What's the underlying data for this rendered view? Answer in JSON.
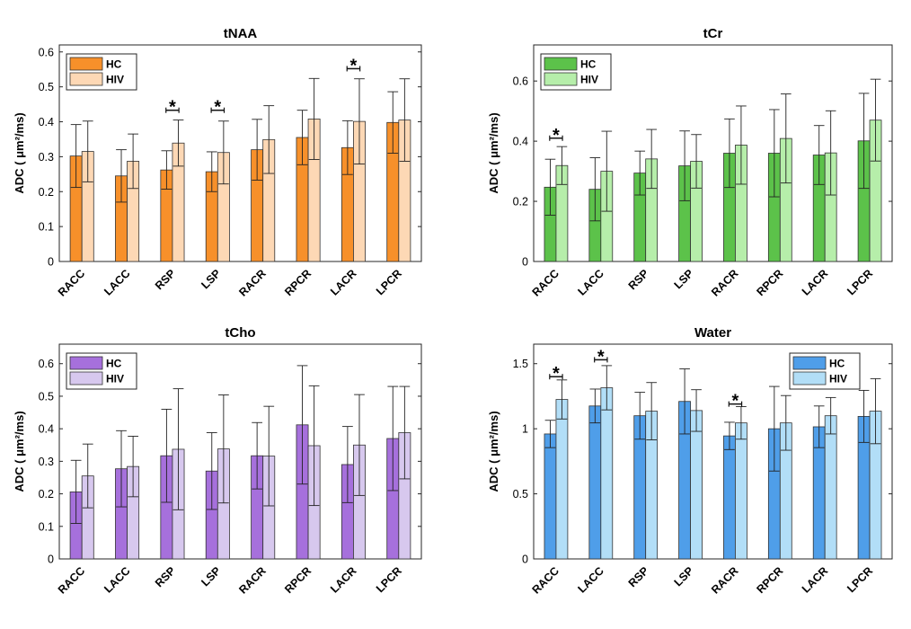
{
  "chart_data": [
    {
      "type": "bar",
      "title": "tNAA",
      "ylabel": "ADC ( μm²/ms)",
      "ylim": [
        0,
        0.62
      ],
      "yticks": [
        "0",
        "0.1",
        "0.2",
        "0.3",
        "0.4",
        "0.5",
        "0.6"
      ],
      "ytick_values": [
        0,
        0.1,
        0.2,
        0.3,
        0.4,
        0.5,
        0.6
      ],
      "categories": [
        "RACC",
        "LACC",
        "RSP",
        "LSP",
        "RACR",
        "RPCR",
        "LACR",
        "LPCR"
      ],
      "series": [
        {
          "name": "HC",
          "color": "#f7902a",
          "values": [
            0.302,
            0.245,
            0.262,
            0.257,
            0.32,
            0.355,
            0.326,
            0.398
          ],
          "err": [
            0.09,
            0.075,
            0.055,
            0.057,
            0.087,
            0.078,
            0.077,
            0.088
          ]
        },
        {
          "name": "HIV",
          "color": "#fdd8b5",
          "values": [
            0.315,
            0.287,
            0.339,
            0.312,
            0.349,
            0.408,
            0.401,
            0.405
          ],
          "err": [
            0.087,
            0.078,
            0.066,
            0.09,
            0.097,
            0.116,
            0.122,
            0.118
          ]
        }
      ],
      "significance": [
        {
          "index": 2,
          "y": 0.433,
          "label": "*"
        },
        {
          "index": 3,
          "y": 0.433,
          "label": "*"
        },
        {
          "index": 6,
          "y": 0.552,
          "label": "*"
        }
      ],
      "legend": "top-left"
    },
    {
      "type": "bar",
      "title": "tCr",
      "ylabel": "ADC ( μm²/ms)",
      "ylim": [
        0,
        0.72
      ],
      "yticks": [
        "0",
        "0.2",
        "0.4",
        "0.6"
      ],
      "ytick_values": [
        0,
        0.2,
        0.4,
        0.6
      ],
      "categories": [
        "RACC",
        "LACC",
        "RSP",
        "LSP",
        "RACR",
        "RPCR",
        "LACR",
        "LPCR"
      ],
      "series": [
        {
          "name": "HC",
          "color": "#5cc24a",
          "values": [
            0.247,
            0.24,
            0.294,
            0.318,
            0.36,
            0.36,
            0.354,
            0.401
          ],
          "err": [
            0.093,
            0.105,
            0.073,
            0.116,
            0.114,
            0.145,
            0.098,
            0.158
          ]
        },
        {
          "name": "HIV",
          "color": "#b6eeaa",
          "values": [
            0.319,
            0.3,
            0.341,
            0.333,
            0.387,
            0.409,
            0.361,
            0.47
          ],
          "err": [
            0.063,
            0.133,
            0.098,
            0.089,
            0.13,
            0.148,
            0.14,
            0.136
          ]
        }
      ],
      "significance": [
        {
          "index": 0,
          "y": 0.41,
          "label": "*"
        }
      ],
      "legend": "top-left"
    },
    {
      "type": "bar",
      "title": "tCho",
      "ylabel": "ADC ( μm²/ms)",
      "ylim": [
        0,
        0.66
      ],
      "yticks": [
        "0",
        "0.1",
        "0.2",
        "0.3",
        "0.4",
        "0.5",
        "0.6"
      ],
      "ytick_values": [
        0,
        0.1,
        0.2,
        0.3,
        0.4,
        0.5,
        0.6
      ],
      "categories": [
        "RACC",
        "LACC",
        "RSP",
        "LSP",
        "RACR",
        "RPCR",
        "LACR",
        "LPCR"
      ],
      "series": [
        {
          "name": "HC",
          "color": "#a670dc",
          "values": [
            0.206,
            0.277,
            0.317,
            0.27,
            0.317,
            0.412,
            0.29,
            0.37
          ],
          "err": [
            0.097,
            0.117,
            0.143,
            0.118,
            0.102,
            0.182,
            0.117,
            0.16
          ]
        },
        {
          "name": "HIV",
          "color": "#d7c8ee",
          "values": [
            0.255,
            0.284,
            0.337,
            0.338,
            0.316,
            0.348,
            0.35,
            0.388
          ],
          "err": [
            0.098,
            0.093,
            0.186,
            0.166,
            0.153,
            0.184,
            0.155,
            0.142
          ]
        }
      ],
      "significance": [],
      "legend": "top-left"
    },
    {
      "type": "bar",
      "title": "Water",
      "ylabel": "ADC ( μm²/ms)",
      "ylim": [
        0,
        1.65
      ],
      "yticks": [
        "0",
        "0.5",
        "1",
        "1.5"
      ],
      "ytick_values": [
        0,
        0.5,
        1,
        1.5
      ],
      "categories": [
        "RACC",
        "LACC",
        "RSP",
        "LSP",
        "RACR",
        "RPCR",
        "LACR",
        "LPCR"
      ],
      "series": [
        {
          "name": "HC",
          "color": "#4f9ee9",
          "values": [
            0.96,
            1.175,
            1.1,
            1.21,
            0.945,
            1.0,
            1.015,
            1.095
          ],
          "err": [
            0.105,
            0.13,
            0.18,
            0.25,
            0.105,
            0.325,
            0.16,
            0.2
          ]
        },
        {
          "name": "HIV",
          "color": "#b2def7",
          "values": [
            1.225,
            1.315,
            1.135,
            1.14,
            1.045,
            1.045,
            1.1,
            1.135
          ],
          "err": [
            0.15,
            0.17,
            0.22,
            0.16,
            0.125,
            0.21,
            0.14,
            0.25
          ]
        }
      ],
      "significance": [
        {
          "index": 0,
          "y": 1.4,
          "label": "*"
        },
        {
          "index": 1,
          "y": 1.53,
          "label": "*"
        },
        {
          "index": 4,
          "y": 1.19,
          "label": "*"
        }
      ],
      "legend": "top-right"
    }
  ]
}
